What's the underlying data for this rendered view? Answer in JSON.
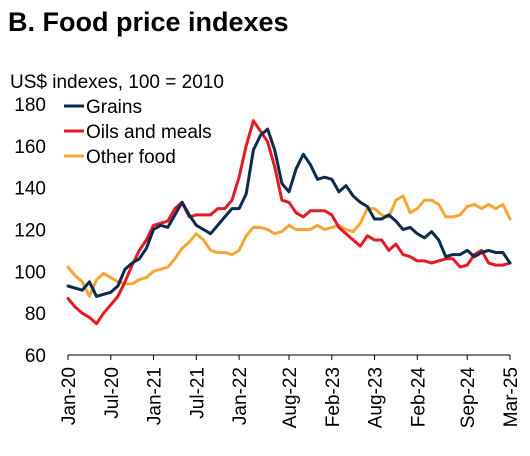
{
  "chart_data": {
    "type": "line",
    "title": "B. Food price indexes",
    "subtitle": "US$ indexes, 100 = 2010",
    "ylim": [
      60,
      180
    ],
    "yticks": [
      60,
      80,
      100,
      120,
      140,
      160,
      180
    ],
    "x_start": "2020-01",
    "x_end": "2025-03",
    "xticks": [
      "Jan-20",
      "Jul-20",
      "Jan-21",
      "Jul-21",
      "Jan-22",
      "Aug-22",
      "Feb-23",
      "Aug-23",
      "Feb-24",
      "Sep-24",
      "Mar-25"
    ],
    "xtick_months": [
      "2020-01",
      "2020-07",
      "2021-01",
      "2021-07",
      "2022-01",
      "2022-08",
      "2023-02",
      "2023-08",
      "2024-02",
      "2024-09",
      "2025-03"
    ],
    "legend_position": "top-left",
    "series": [
      {
        "name": "Grains",
        "color": "#0d2a4f",
        "values": [
          93,
          92,
          91,
          95,
          88,
          89,
          90,
          93,
          101,
          104,
          106,
          111,
          120,
          122,
          121,
          127,
          133,
          127,
          122,
          120,
          118,
          122,
          126,
          130,
          130,
          137,
          158,
          165,
          168,
          158,
          142,
          138,
          149,
          156,
          151,
          144,
          145,
          144,
          138,
          141,
          136,
          133,
          131,
          125,
          125,
          127,
          124,
          120,
          121,
          118,
          116,
          119,
          115,
          107,
          108,
          108,
          110,
          107,
          109,
          110,
          109,
          109,
          104
        ]
      },
      {
        "name": "Oils and meals",
        "color": "#e31b23",
        "values": [
          87,
          83,
          80,
          78,
          75,
          80,
          84,
          88,
          95,
          103,
          110,
          115,
          122,
          123,
          124,
          130,
          133,
          126,
          127,
          127,
          127,
          130,
          130,
          134,
          145,
          160,
          172,
          167,
          162,
          150,
          134,
          133,
          128,
          126,
          129,
          129,
          129,
          127,
          121,
          118,
          115,
          112,
          117,
          115,
          115,
          110,
          113,
          108,
          107,
          105,
          105,
          104,
          105,
          106,
          106,
          102,
          103,
          108,
          110,
          104,
          103,
          103,
          104
        ]
      },
      {
        "name": "Other food",
        "color": "#f7a635",
        "values": [
          102,
          98,
          95,
          88,
          96,
          99,
          97,
          95,
          94,
          94,
          96,
          97,
          100,
          101,
          102,
          106,
          111,
          114,
          118,
          115,
          110,
          109,
          109,
          108,
          110,
          117,
          121,
          121,
          120,
          118,
          119,
          122,
          120,
          120,
          120,
          122,
          120,
          121,
          122,
          120,
          119,
          123,
          130,
          130,
          127,
          126,
          134,
          136,
          128,
          130,
          134,
          134,
          132,
          126,
          126,
          127,
          131,
          132,
          130,
          132,
          130,
          132,
          125
        ]
      }
    ]
  }
}
